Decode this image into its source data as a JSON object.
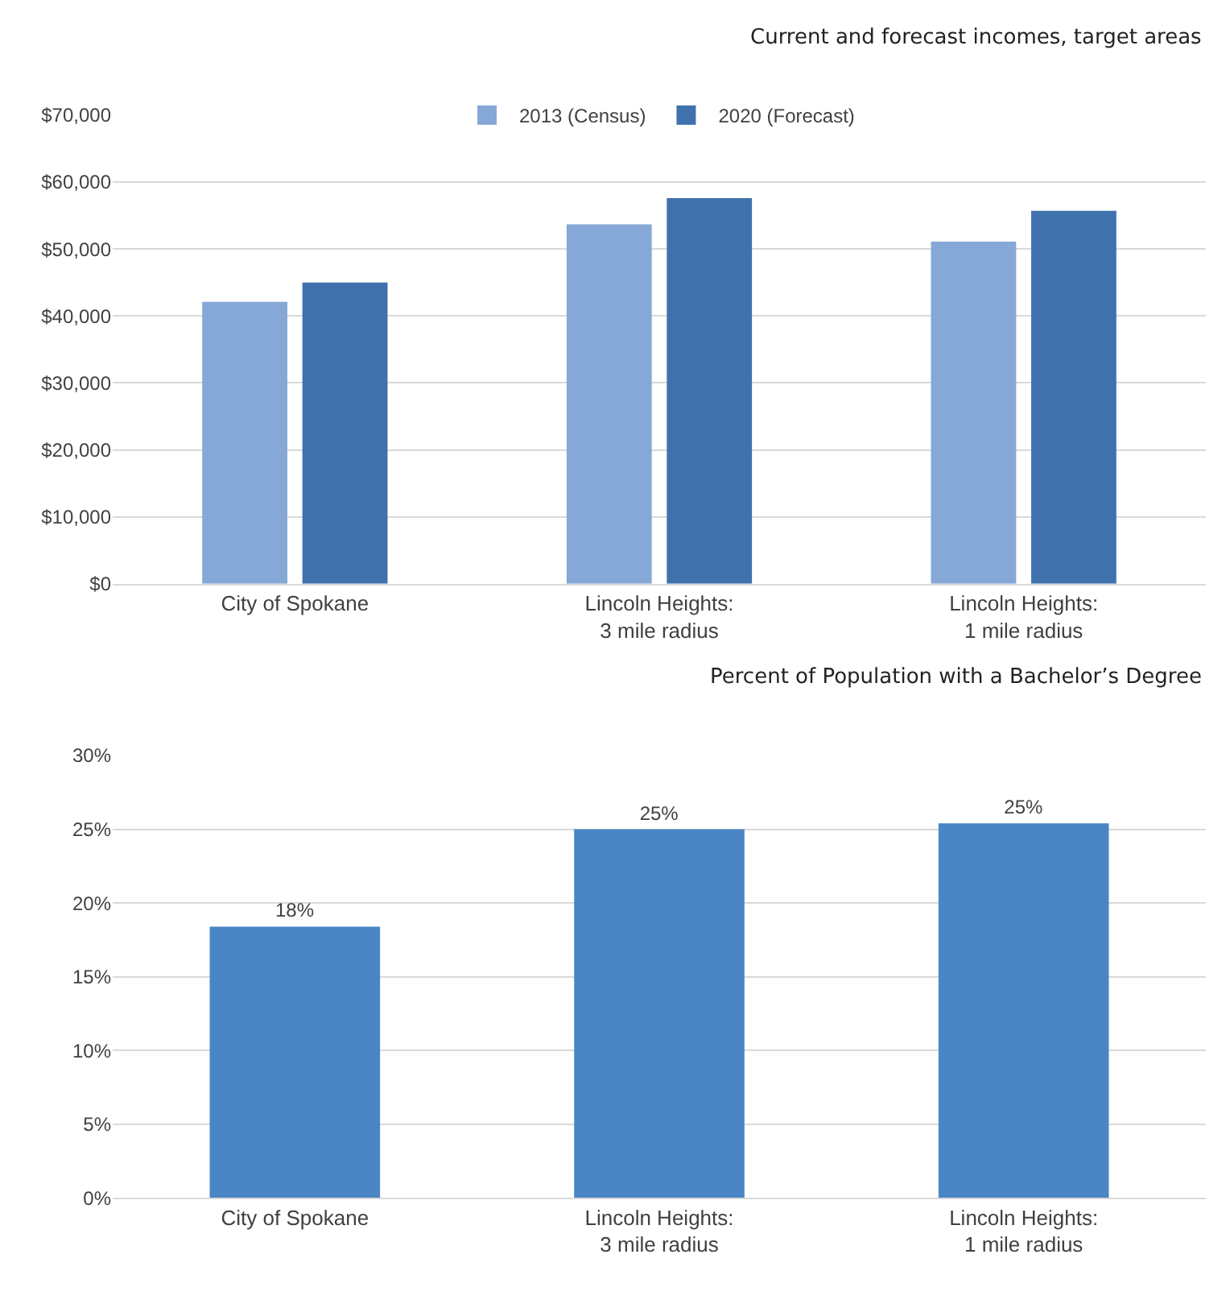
{
  "chart_data": [
    {
      "type": "bar",
      "title": "Current and forecast incomes, target areas",
      "categories": [
        "City of Spokane",
        "Lincoln Heights:\n3 mile radius",
        "Lincoln Heights:\n1 mile radius"
      ],
      "series": [
        {
          "name": "2013 (Census)",
          "color": "#86a8d6",
          "values": [
            42100,
            53700,
            51100
          ]
        },
        {
          "name": "2020 (Forecast)",
          "color": "#3f72ad",
          "values": [
            45000,
            57600,
            55700
          ]
        }
      ],
      "ylim": [
        0,
        70000
      ],
      "yticks": [
        {
          "value": 0,
          "label": "$0"
        },
        {
          "value": 10000,
          "label": "$10,000"
        },
        {
          "value": 20000,
          "label": "$20,000"
        },
        {
          "value": 30000,
          "label": "$30,000"
        },
        {
          "value": 40000,
          "label": "$40,000"
        },
        {
          "value": 50000,
          "label": "$50,000"
        },
        {
          "value": 60000,
          "label": "$60,000"
        },
        {
          "value": 70000,
          "label": "$70,000"
        }
      ],
      "grid": "y",
      "legend": "top"
    },
    {
      "type": "bar",
      "title": "Percent of Population with a Bachelor’s Degree",
      "categories": [
        "City of Spokane",
        "Lincoln Heights:\n3 mile radius",
        "Lincoln Heights:\n1 mile radius"
      ],
      "series": [
        {
          "color": "#4a86c5",
          "values": [
            18.4,
            25.0,
            25.4
          ],
          "value_labels": [
            "18%",
            "25%",
            "25%"
          ]
        }
      ],
      "ylim": [
        0,
        30
      ],
      "yticks": [
        {
          "value": 0,
          "label": "0%"
        },
        {
          "value": 5,
          "label": "5%"
        },
        {
          "value": 10,
          "label": "10%"
        },
        {
          "value": 15,
          "label": "15%"
        },
        {
          "value": 20,
          "label": "20%"
        },
        {
          "value": 25,
          "label": "25%"
        },
        {
          "value": 30,
          "label": "30%"
        }
      ],
      "grid": "y"
    }
  ]
}
